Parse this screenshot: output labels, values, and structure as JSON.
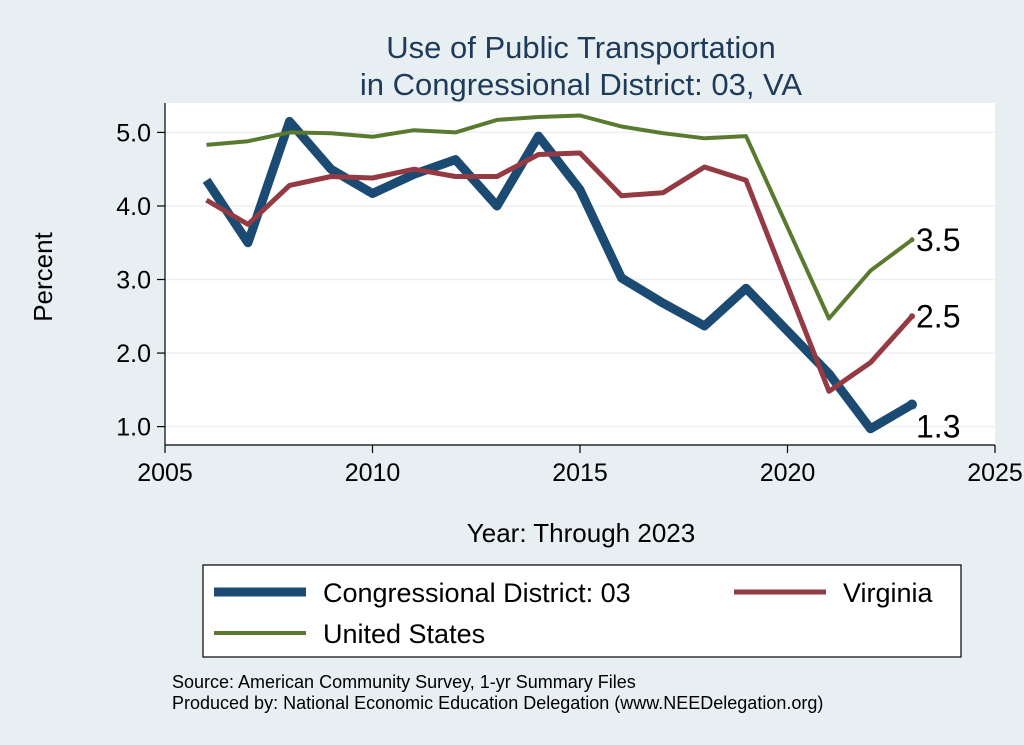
{
  "chart_data": {
    "type": "line",
    "title": [
      "Use of Public Transportation",
      "in Congressional District: 03, VA"
    ],
    "xlabel": "Year: Through 2023",
    "ylabel": "Percent",
    "xlim": [
      2005,
      2025
    ],
    "ylim": [
      0.75,
      5.4
    ],
    "xticks": [
      2005,
      2010,
      2015,
      2020,
      2025
    ],
    "yticks": [
      1.0,
      2.0,
      3.0,
      4.0,
      5.0
    ],
    "ytick_labels": [
      "1.0",
      "2.0",
      "3.0",
      "4.0",
      "5.0"
    ],
    "grid": true,
    "legend_position": "bottom",
    "series": [
      {
        "name": "Congressional District: 03",
        "color": "#1b4a72",
        "x": [
          2006,
          2007,
          2008,
          2009,
          2010,
          2011,
          2012,
          2013,
          2014,
          2015,
          2016,
          2017,
          2018,
          2019,
          2021,
          2022,
          2023
        ],
        "values": [
          4.35,
          3.5,
          5.15,
          4.5,
          4.17,
          4.43,
          4.63,
          4.0,
          4.95,
          4.22,
          3.02,
          2.68,
          2.37,
          2.88,
          1.72,
          0.97,
          1.3
        ],
        "end_label": "1.3"
      },
      {
        "name": "Virginia",
        "color": "#943a42",
        "x": [
          2006,
          2007,
          2008,
          2009,
          2010,
          2011,
          2012,
          2013,
          2014,
          2015,
          2016,
          2017,
          2018,
          2019,
          2021,
          2022,
          2023
        ],
        "values": [
          4.08,
          3.75,
          4.28,
          4.4,
          4.38,
          4.5,
          4.4,
          4.4,
          4.7,
          4.72,
          4.14,
          4.18,
          4.53,
          4.35,
          1.48,
          1.87,
          2.5
        ],
        "end_label": "2.5"
      },
      {
        "name": "United States",
        "color": "#5a7a2f",
        "x": [
          2006,
          2007,
          2008,
          2009,
          2010,
          2011,
          2012,
          2013,
          2014,
          2015,
          2016,
          2017,
          2018,
          2019,
          2021,
          2022,
          2023
        ],
        "values": [
          4.83,
          4.88,
          5.0,
          4.99,
          4.94,
          5.03,
          5.0,
          5.17,
          5.21,
          5.23,
          5.08,
          4.99,
          4.92,
          4.95,
          2.47,
          3.12,
          3.54
        ],
        "end_label": "3.5"
      }
    ],
    "legend_entries": [
      "Congressional District: 03",
      "Virginia",
      "United States"
    ],
    "notes": [
      "Source: American Community Survey, 1-yr Summary Files",
      "Produced by: National Economic Education Delegation (www.NEEDelegation.org)"
    ]
  }
}
